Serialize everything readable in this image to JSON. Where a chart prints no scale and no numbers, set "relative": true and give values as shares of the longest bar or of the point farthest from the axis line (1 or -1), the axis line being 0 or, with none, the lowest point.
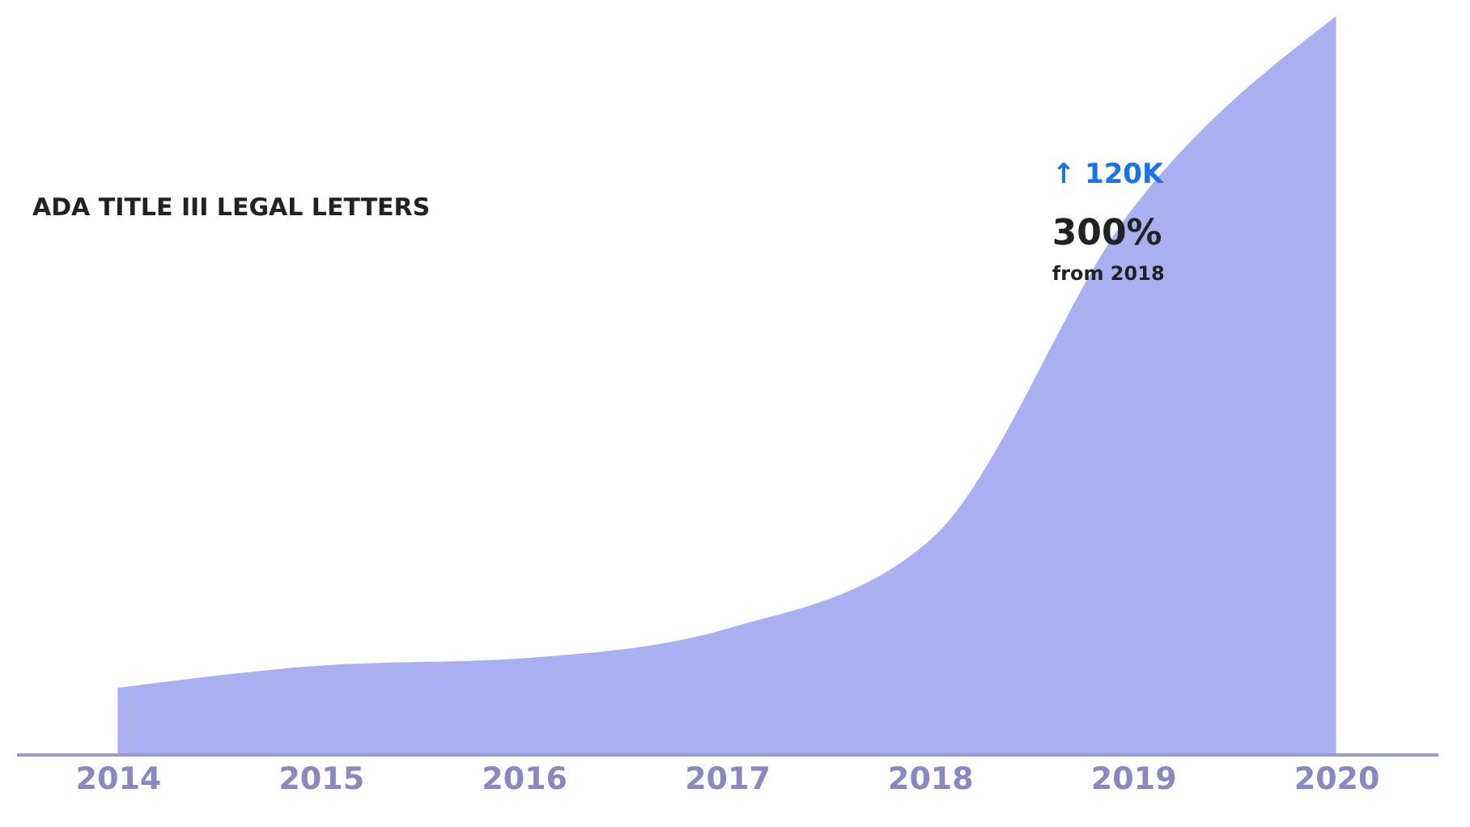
{
  "chart_data": {
    "type": "area",
    "title": "ADA TITLE III LEGAL LETTERS",
    "relative": true,
    "categories": [
      "2014",
      "2015",
      "2016",
      "2017",
      "2018",
      "2019",
      "2020"
    ],
    "series": [
      {
        "color": "#a8b0f0",
        "values": [
          0.09,
          0.12,
          0.13,
          0.17,
          0.29,
          0.74,
          1.0
        ]
      }
    ],
    "annotations": [
      "↑ 120K",
      "300%",
      "from 2018"
    ],
    "grid": false
  }
}
